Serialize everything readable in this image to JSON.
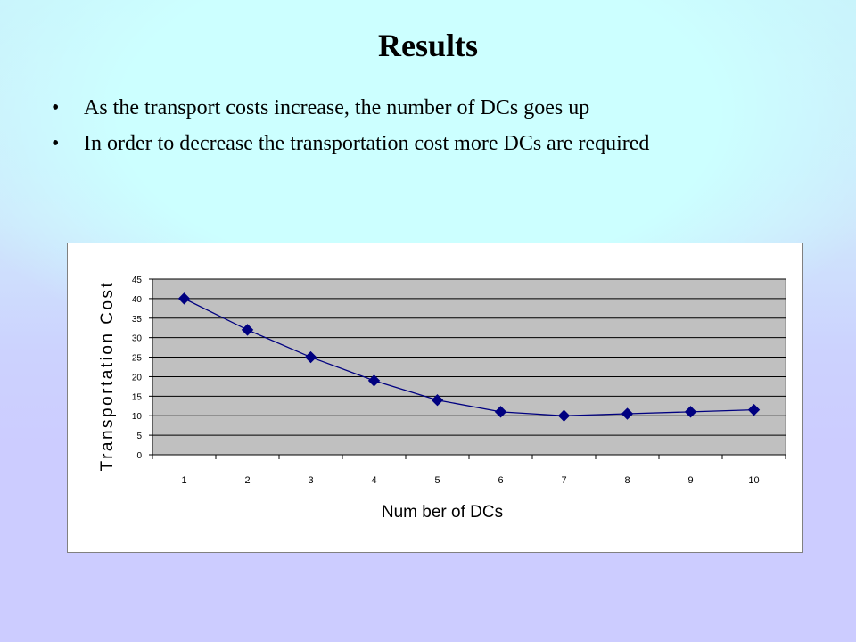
{
  "slide": {
    "title": "Results",
    "bullets": [
      "As the transport costs increase, the number of DCs goes up",
      "In order to decrease the transportation cost more DCs are required"
    ],
    "bullet_glyph": "•"
  },
  "colors": {
    "plot_background": "#c0c0c0",
    "series_line": "#000080",
    "series_marker": "#000080",
    "gridline": "#000000"
  },
  "chart_data": {
    "type": "line",
    "title": "",
    "xlabel": "Num ber of DCs",
    "ylabel": "Transportation Cost",
    "categories": [
      "1",
      "2",
      "3",
      "4",
      "5",
      "6",
      "7",
      "8",
      "9",
      "10"
    ],
    "series": [
      {
        "values": [
          40,
          32,
          25,
          19,
          14,
          11,
          10,
          10.5,
          11,
          11.5
        ],
        "marker": "diamond"
      }
    ],
    "ylim": [
      0,
      45
    ],
    "yticks": [
      0,
      5,
      10,
      15,
      20,
      25,
      30,
      35,
      40,
      45
    ],
    "grid": "horizontal",
    "legend": "none"
  }
}
